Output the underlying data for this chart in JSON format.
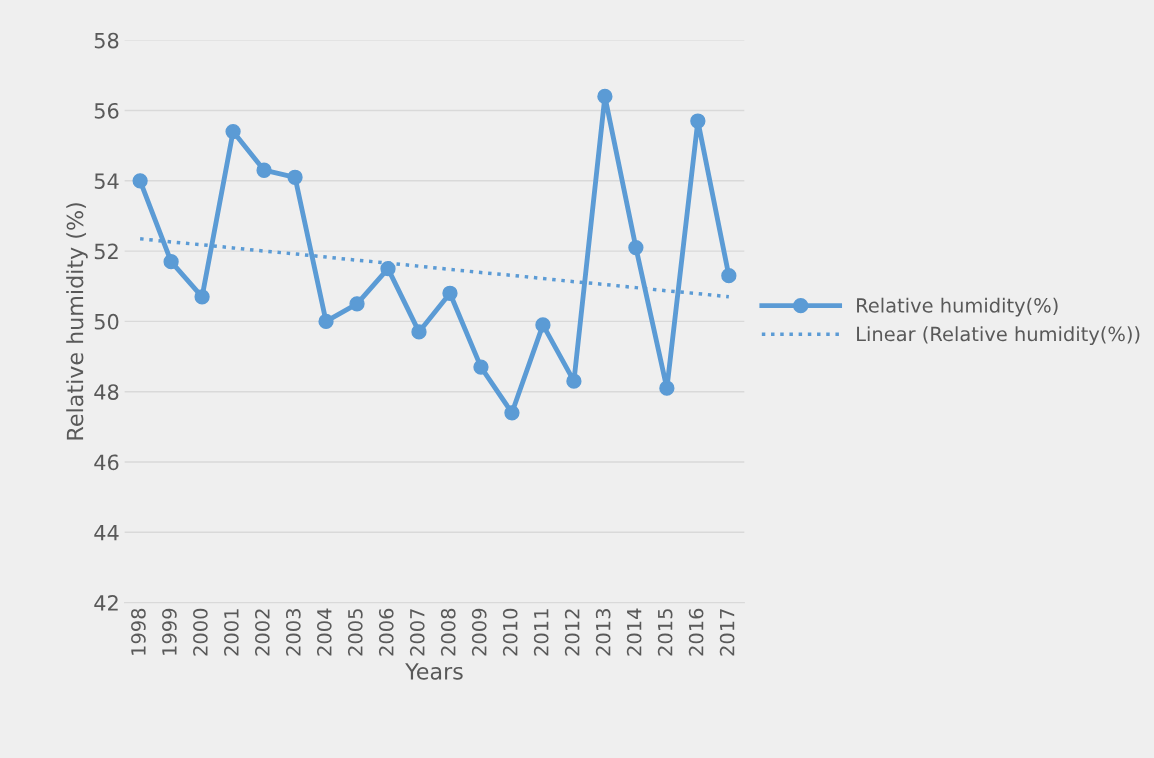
{
  "chart_data": {
    "type": "line",
    "xlabel": "Years",
    "ylabel": "Relative humidity (%)",
    "categories": [
      "1998",
      "1999",
      "2000",
      "2001",
      "2002",
      "2003",
      "2004",
      "2005",
      "2006",
      "2007",
      "2008",
      "2009",
      "2010",
      "2011",
      "2012",
      "2013",
      "2014",
      "2015",
      "2016",
      "2017"
    ],
    "series": [
      {
        "name": "Relative humidity(%)",
        "color": "#5b9bd5",
        "marker": "circle",
        "line_style": "solid",
        "values": [
          54.0,
          51.7,
          50.7,
          55.4,
          54.3,
          54.1,
          50.0,
          50.5,
          51.5,
          49.7,
          50.8,
          48.7,
          47.4,
          49.9,
          48.3,
          56.4,
          52.1,
          48.1,
          55.7,
          51.3
        ]
      },
      {
        "name": "Linear (Relative humidity(%))",
        "type": "line",
        "color": "#5b9bd5",
        "marker": "none",
        "line_style": "dotted",
        "values": [
          52.35,
          52.26,
          52.18,
          52.09,
          52.0,
          51.92,
          51.83,
          51.74,
          51.66,
          51.57,
          51.48,
          51.39,
          51.31,
          51.22,
          51.13,
          51.05,
          50.96,
          50.87,
          50.79,
          50.7
        ]
      }
    ],
    "ylim": [
      42,
      58
    ],
    "yticks": [
      42,
      44,
      46,
      48,
      50,
      52,
      54,
      56,
      58
    ],
    "grid": "y",
    "legend": "right"
  }
}
